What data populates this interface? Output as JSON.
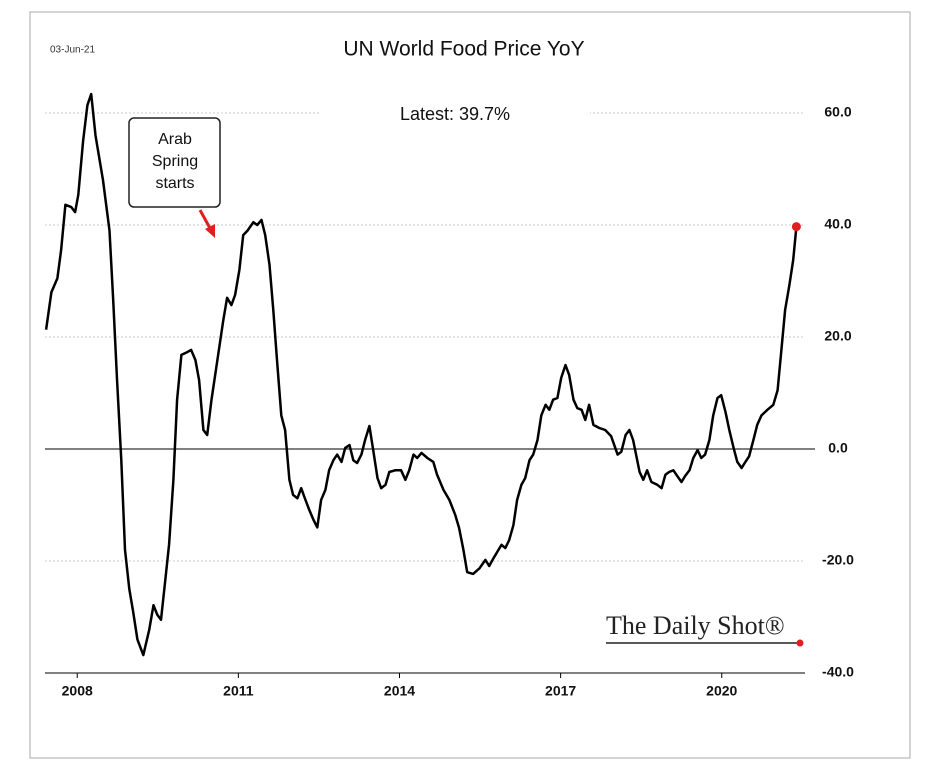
{
  "chart_data": {
    "type": "line",
    "title": "UN World Food Price YoY",
    "date_stamp": "03-Jun-21",
    "latest_note": "Latest:  39.7%",
    "annotation": {
      "lines": [
        "Arab",
        "Spring",
        "starts"
      ]
    },
    "source": "The Daily Shot®",
    "color": "#000000",
    "marker_color": "#e02020",
    "grid": true,
    "xlim": [
      2007.4,
      2021.55
    ],
    "xticks": [
      2008,
      2011,
      2014,
      2017,
      2020
    ],
    "ylim": [
      -40,
      64
    ],
    "yticks": [
      {
        "value": 60,
        "label": "60.0"
      },
      {
        "value": 40,
        "label": "40.0"
      },
      {
        "value": 20,
        "label": "20.0"
      },
      {
        "value": 0,
        "label": "0.0"
      },
      {
        "value": -20,
        "label": "-20.0"
      },
      {
        "value": -40,
        "label": "-40.0"
      }
    ],
    "x": [
      2007.42,
      2007.52,
      2007.63,
      2007.7,
      2007.78,
      2007.89,
      2007.96,
      2008.02,
      2008.11,
      2008.19,
      2008.26,
      2008.34,
      2008.48,
      2008.6,
      2008.67,
      2008.74,
      2008.82,
      2008.89,
      2008.97,
      2009.04,
      2009.12,
      2009.23,
      2009.34,
      2009.42,
      2009.49,
      2009.56,
      2009.64,
      2009.71,
      2009.79,
      2009.86,
      2009.94,
      2010.05,
      2010.12,
      2010.2,
      2010.27,
      2010.35,
      2010.42,
      2010.5,
      2010.61,
      2010.72,
      2010.79,
      2010.87,
      2010.94,
      2011.02,
      2011.09,
      2011.17,
      2011.28,
      2011.35,
      2011.43,
      2011.5,
      2011.58,
      2011.65,
      2011.72,
      2011.8,
      2011.87,
      2011.95,
      2012.02,
      2012.1,
      2012.17,
      2012.25,
      2012.32,
      2012.4,
      2012.47,
      2012.54,
      2012.62,
      2012.69,
      2012.77,
      2012.84,
      2012.92,
      2012.99,
      2013.07,
      2013.14,
      2013.21,
      2013.29,
      2013.36,
      2013.44,
      2013.51,
      2013.59,
      2013.66,
      2013.74,
      2013.81,
      2013.92,
      2014.03,
      2014.11,
      2014.18,
      2014.26,
      2014.33,
      2014.41,
      2014.52,
      2014.63,
      2014.7,
      2014.82,
      2014.93,
      2015.04,
      2015.11,
      2015.19,
      2015.26,
      2015.37,
      2015.49,
      2015.6,
      2015.67,
      2015.75,
      2015.82,
      2015.9,
      2015.97,
      2016.04,
      2016.12,
      2016.19,
      2016.27,
      2016.34,
      2016.42,
      2016.49,
      2016.57,
      2016.64,
      2016.72,
      2016.79,
      2016.86,
      2016.94,
      2017.01,
      2017.09,
      2017.16,
      2017.24,
      2017.31,
      2017.39,
      2017.46,
      2017.53,
      2017.61,
      2017.72,
      2017.83,
      2017.94,
      2018.06,
      2018.13,
      2018.21,
      2018.28,
      2018.35,
      2018.47,
      2018.54,
      2018.61,
      2018.69,
      2018.8,
      2018.88,
      2018.95,
      2019.02,
      2019.1,
      2019.17,
      2019.25,
      2019.32,
      2019.4,
      2019.47,
      2019.55,
      2019.62,
      2019.69,
      2019.77,
      2019.84,
      2019.92,
      2019.99,
      2020.07,
      2020.14,
      2020.22,
      2020.29,
      2020.37,
      2020.44,
      2020.51,
      2020.59,
      2020.66,
      2020.74,
      2020.85,
      2020.96,
      2021.04,
      2021.11,
      2021.18,
      2021.26,
      2021.33,
      2021.39
    ],
    "values": [
      21.3,
      28,
      30.5,
      35.5,
      43.6,
      43.2,
      42.3,
      45.4,
      55,
      61.4,
      63.4,
      56,
      48,
      39,
      26.6,
      12.5,
      -2,
      -18,
      -25,
      -29,
      -34,
      -36.8,
      -32.3,
      -27.9,
      -29.6,
      -30.5,
      -23.4,
      -17,
      -5.5,
      8.8,
      16.8,
      17.3,
      17.7,
      15.9,
      12.3,
      3.4,
      2.5,
      8.8,
      15.9,
      23,
      27,
      25.7,
      27.5,
      32,
      38.2,
      39,
      40.5,
      40,
      40.9,
      38.2,
      32.9,
      24.8,
      15.9,
      6,
      3.4,
      -5.5,
      -8.2,
      -8.8,
      -7,
      -9.1,
      -10.9,
      -12.7,
      -14,
      -9.1,
      -7.3,
      -3.8,
      -2,
      -1,
      -2.3,
      0.2,
      0.7,
      -2,
      -2.5,
      -1,
      1.6,
      4.1,
      -0.2,
      -5.2,
      -7,
      -6.4,
      -4.1,
      -3.8,
      -3.8,
      -5.5,
      -3.8,
      -1,
      -1.6,
      -0.7,
      -1.6,
      -2.3,
      -4.6,
      -7.3,
      -9.1,
      -11.8,
      -14.1,
      -18,
      -22,
      -22.3,
      -21.3,
      -19.8,
      -20.9,
      -19.5,
      -18.4,
      -17.1,
      -17.7,
      -16.3,
      -13.6,
      -9.1,
      -6.4,
      -5.2,
      -2,
      -1,
      1.6,
      6,
      7.9,
      7,
      8.8,
      9.1,
      12.7,
      15,
      13.2,
      8.8,
      7.3,
      7,
      5.2,
      7.9,
      4.3,
      3.75,
      3.4,
      2.3,
      -1,
      -0.5,
      2.5,
      3.4,
      1.6,
      -4.1,
      -5.5,
      -3.8,
      -5.9,
      -6.4,
      -7,
      -4.6,
      -4.1,
      -3.8,
      -4.8,
      -5.9,
      -4.8,
      -3.8,
      -1.6,
      -0.2,
      -1.6,
      -1,
      1.6,
      6,
      9.1,
      9.6,
      6.6,
      3.4,
      0.2,
      -2.3,
      -3.4,
      -2.3,
      -1.3,
      1.6,
      4.3,
      6,
      7,
      7.9,
      10.5,
      17.7,
      24.8,
      29.3,
      33.75,
      39.7
    ]
  }
}
